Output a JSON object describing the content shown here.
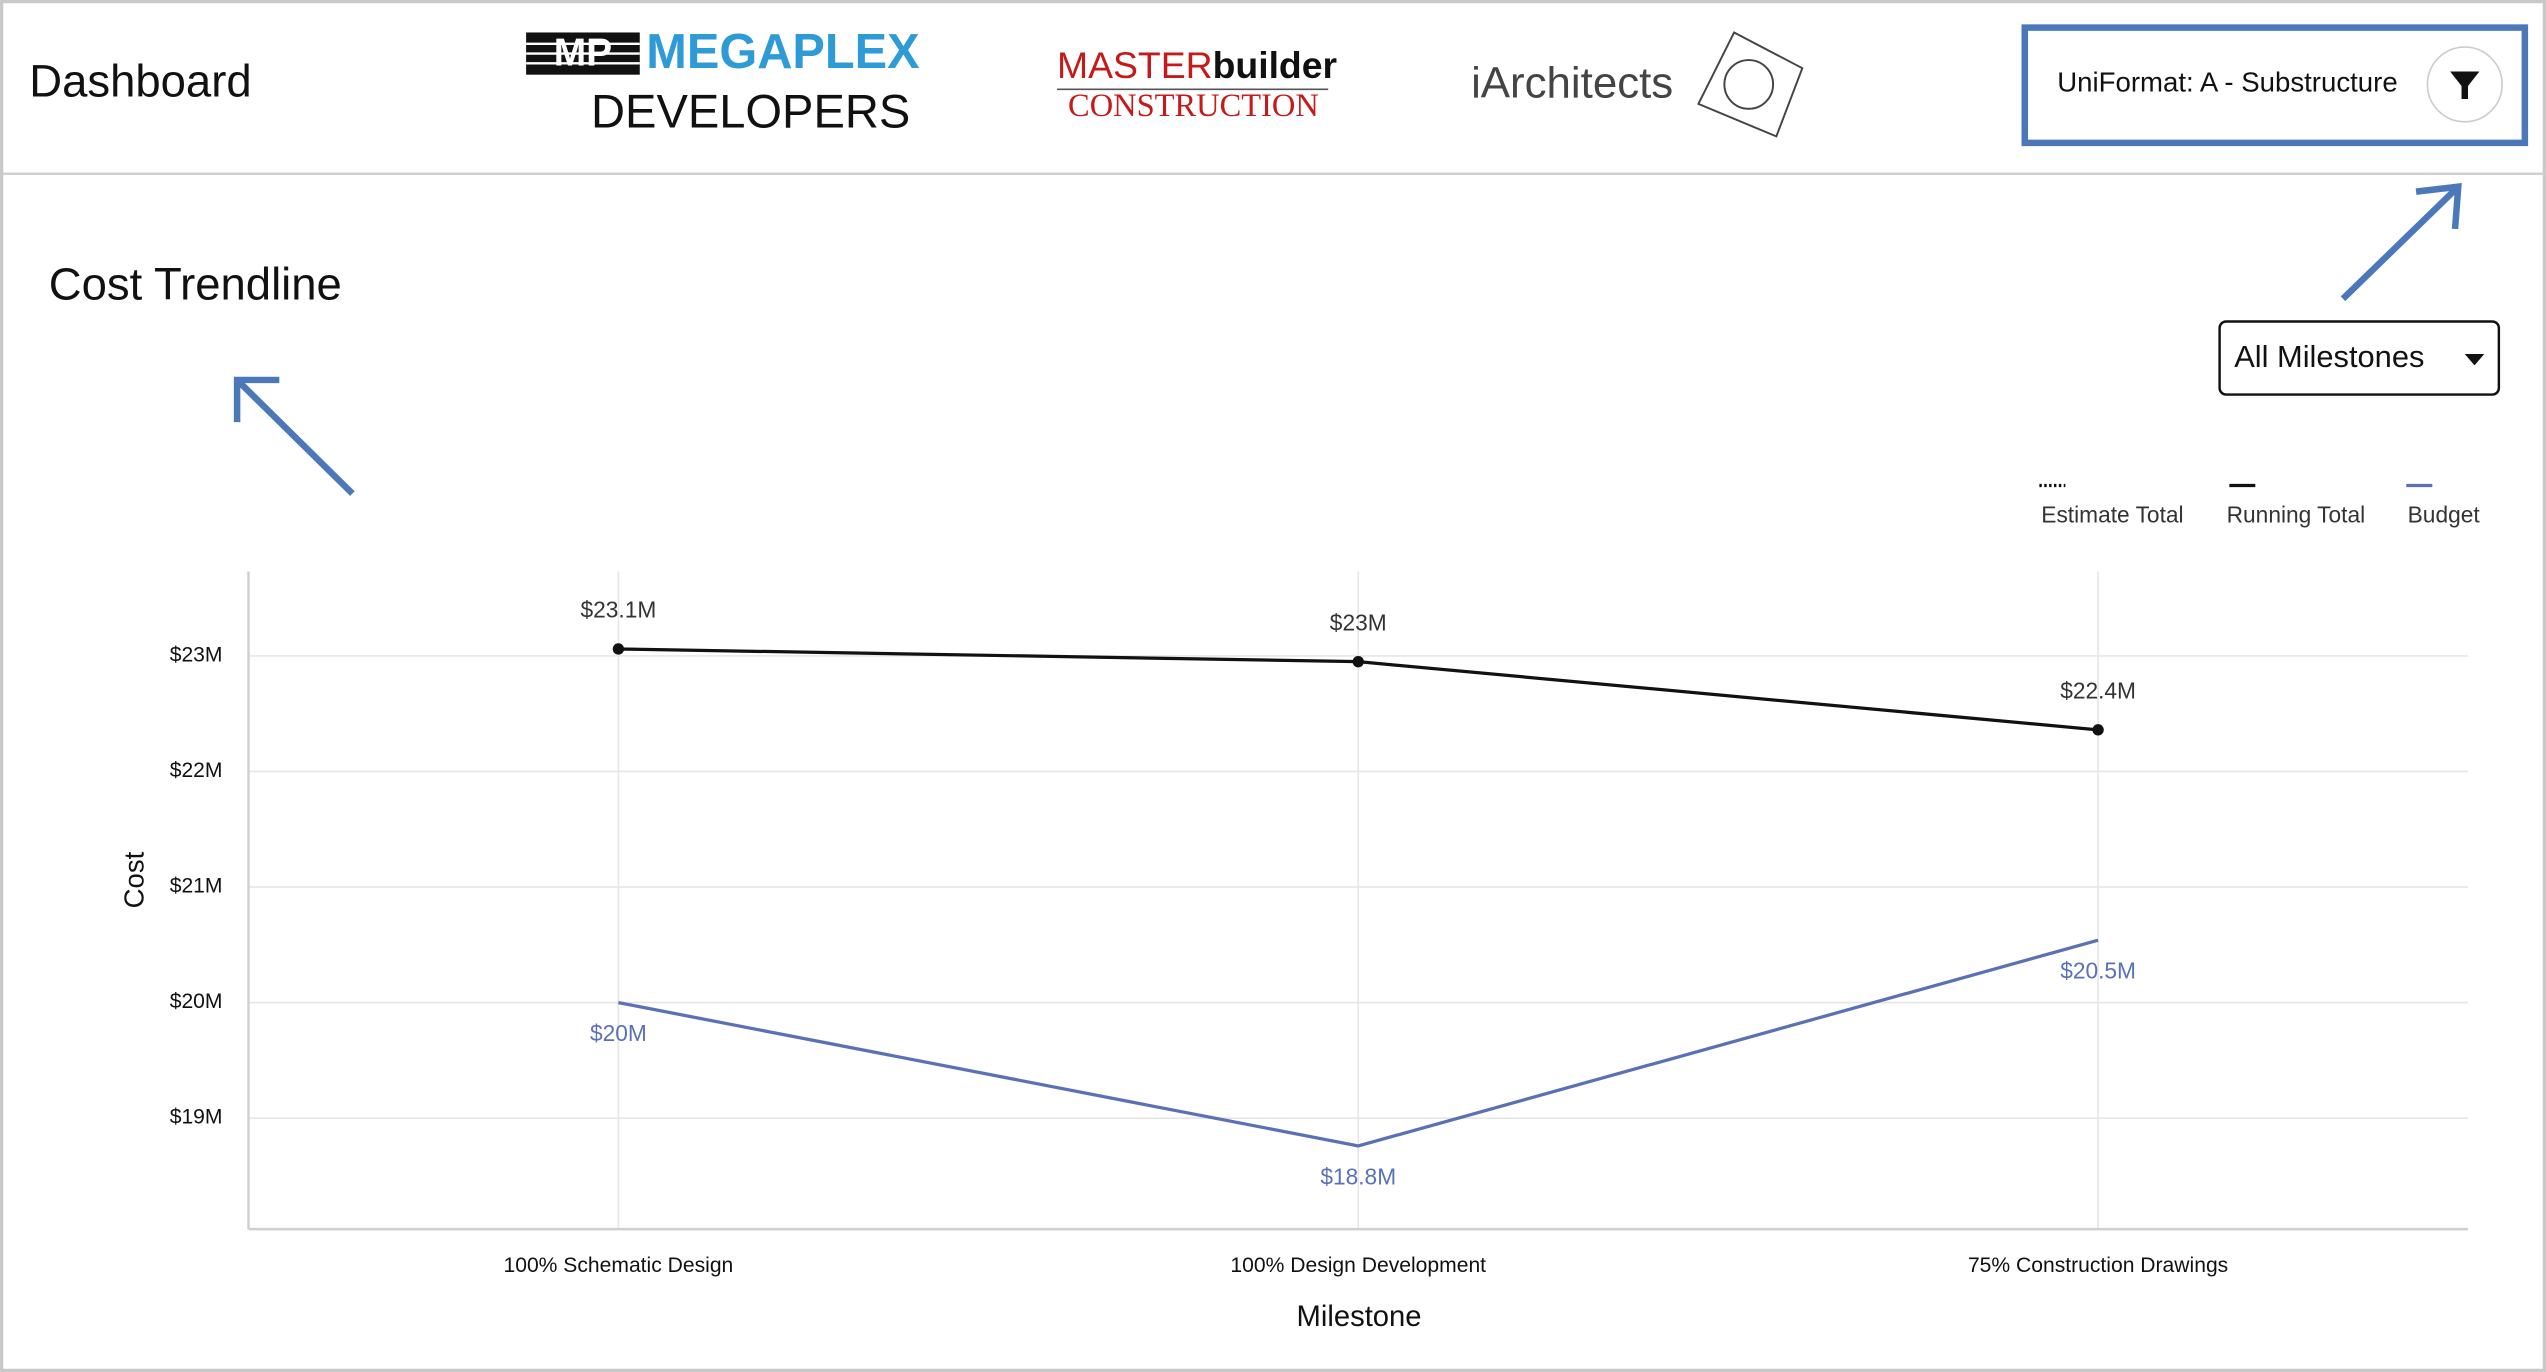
{
  "header": {
    "title": "Dashboard",
    "logos": {
      "megaplex_mark": "MP",
      "megaplex_name": "MEGAPLEX",
      "megaplex_sub": "DEVELOPERS",
      "master_a": "MASTER",
      "master_b": "builder",
      "master_sub": "CONSTRUCTION",
      "architects": "iArchitects"
    },
    "filter": "UniFormat: A - Substructure"
  },
  "milestone_select": "All Milestones",
  "chart_data": {
    "type": "line",
    "title": "Cost Trendline",
    "xlabel": "Milestone",
    "ylabel": "Cost",
    "categories": [
      "100% Schematic Design",
      "100% Design Development",
      "75% Construction Drawings"
    ],
    "series": [
      {
        "name": "Estimate Total",
        "color": "#111111",
        "dash": true,
        "values": [
          null,
          null,
          null
        ]
      },
      {
        "name": "Running Total",
        "color": "#111111",
        "markers": true,
        "values": [
          23060000,
          22950000,
          22360000
        ],
        "value_labels": [
          "$23.1M",
          "$23M",
          "$22.4M"
        ]
      },
      {
        "name": "Budget",
        "color": "#5b70b5",
        "values": [
          20000000,
          18760000,
          20540000
        ],
        "value_labels": [
          "$20M",
          "$18.8M",
          "$20.5M"
        ]
      }
    ],
    "ylim": [
      18040000,
      23730000
    ],
    "yticks": [
      {
        "value": 19000000,
        "label": "$19M"
      },
      {
        "value": 20000000,
        "label": "$20M"
      },
      {
        "value": 21000000,
        "label": "$21M"
      },
      {
        "value": 22000000,
        "label": "$22M"
      },
      {
        "value": 23000000,
        "label": "$23M"
      }
    ],
    "grid": true,
    "legend": "top-right"
  }
}
